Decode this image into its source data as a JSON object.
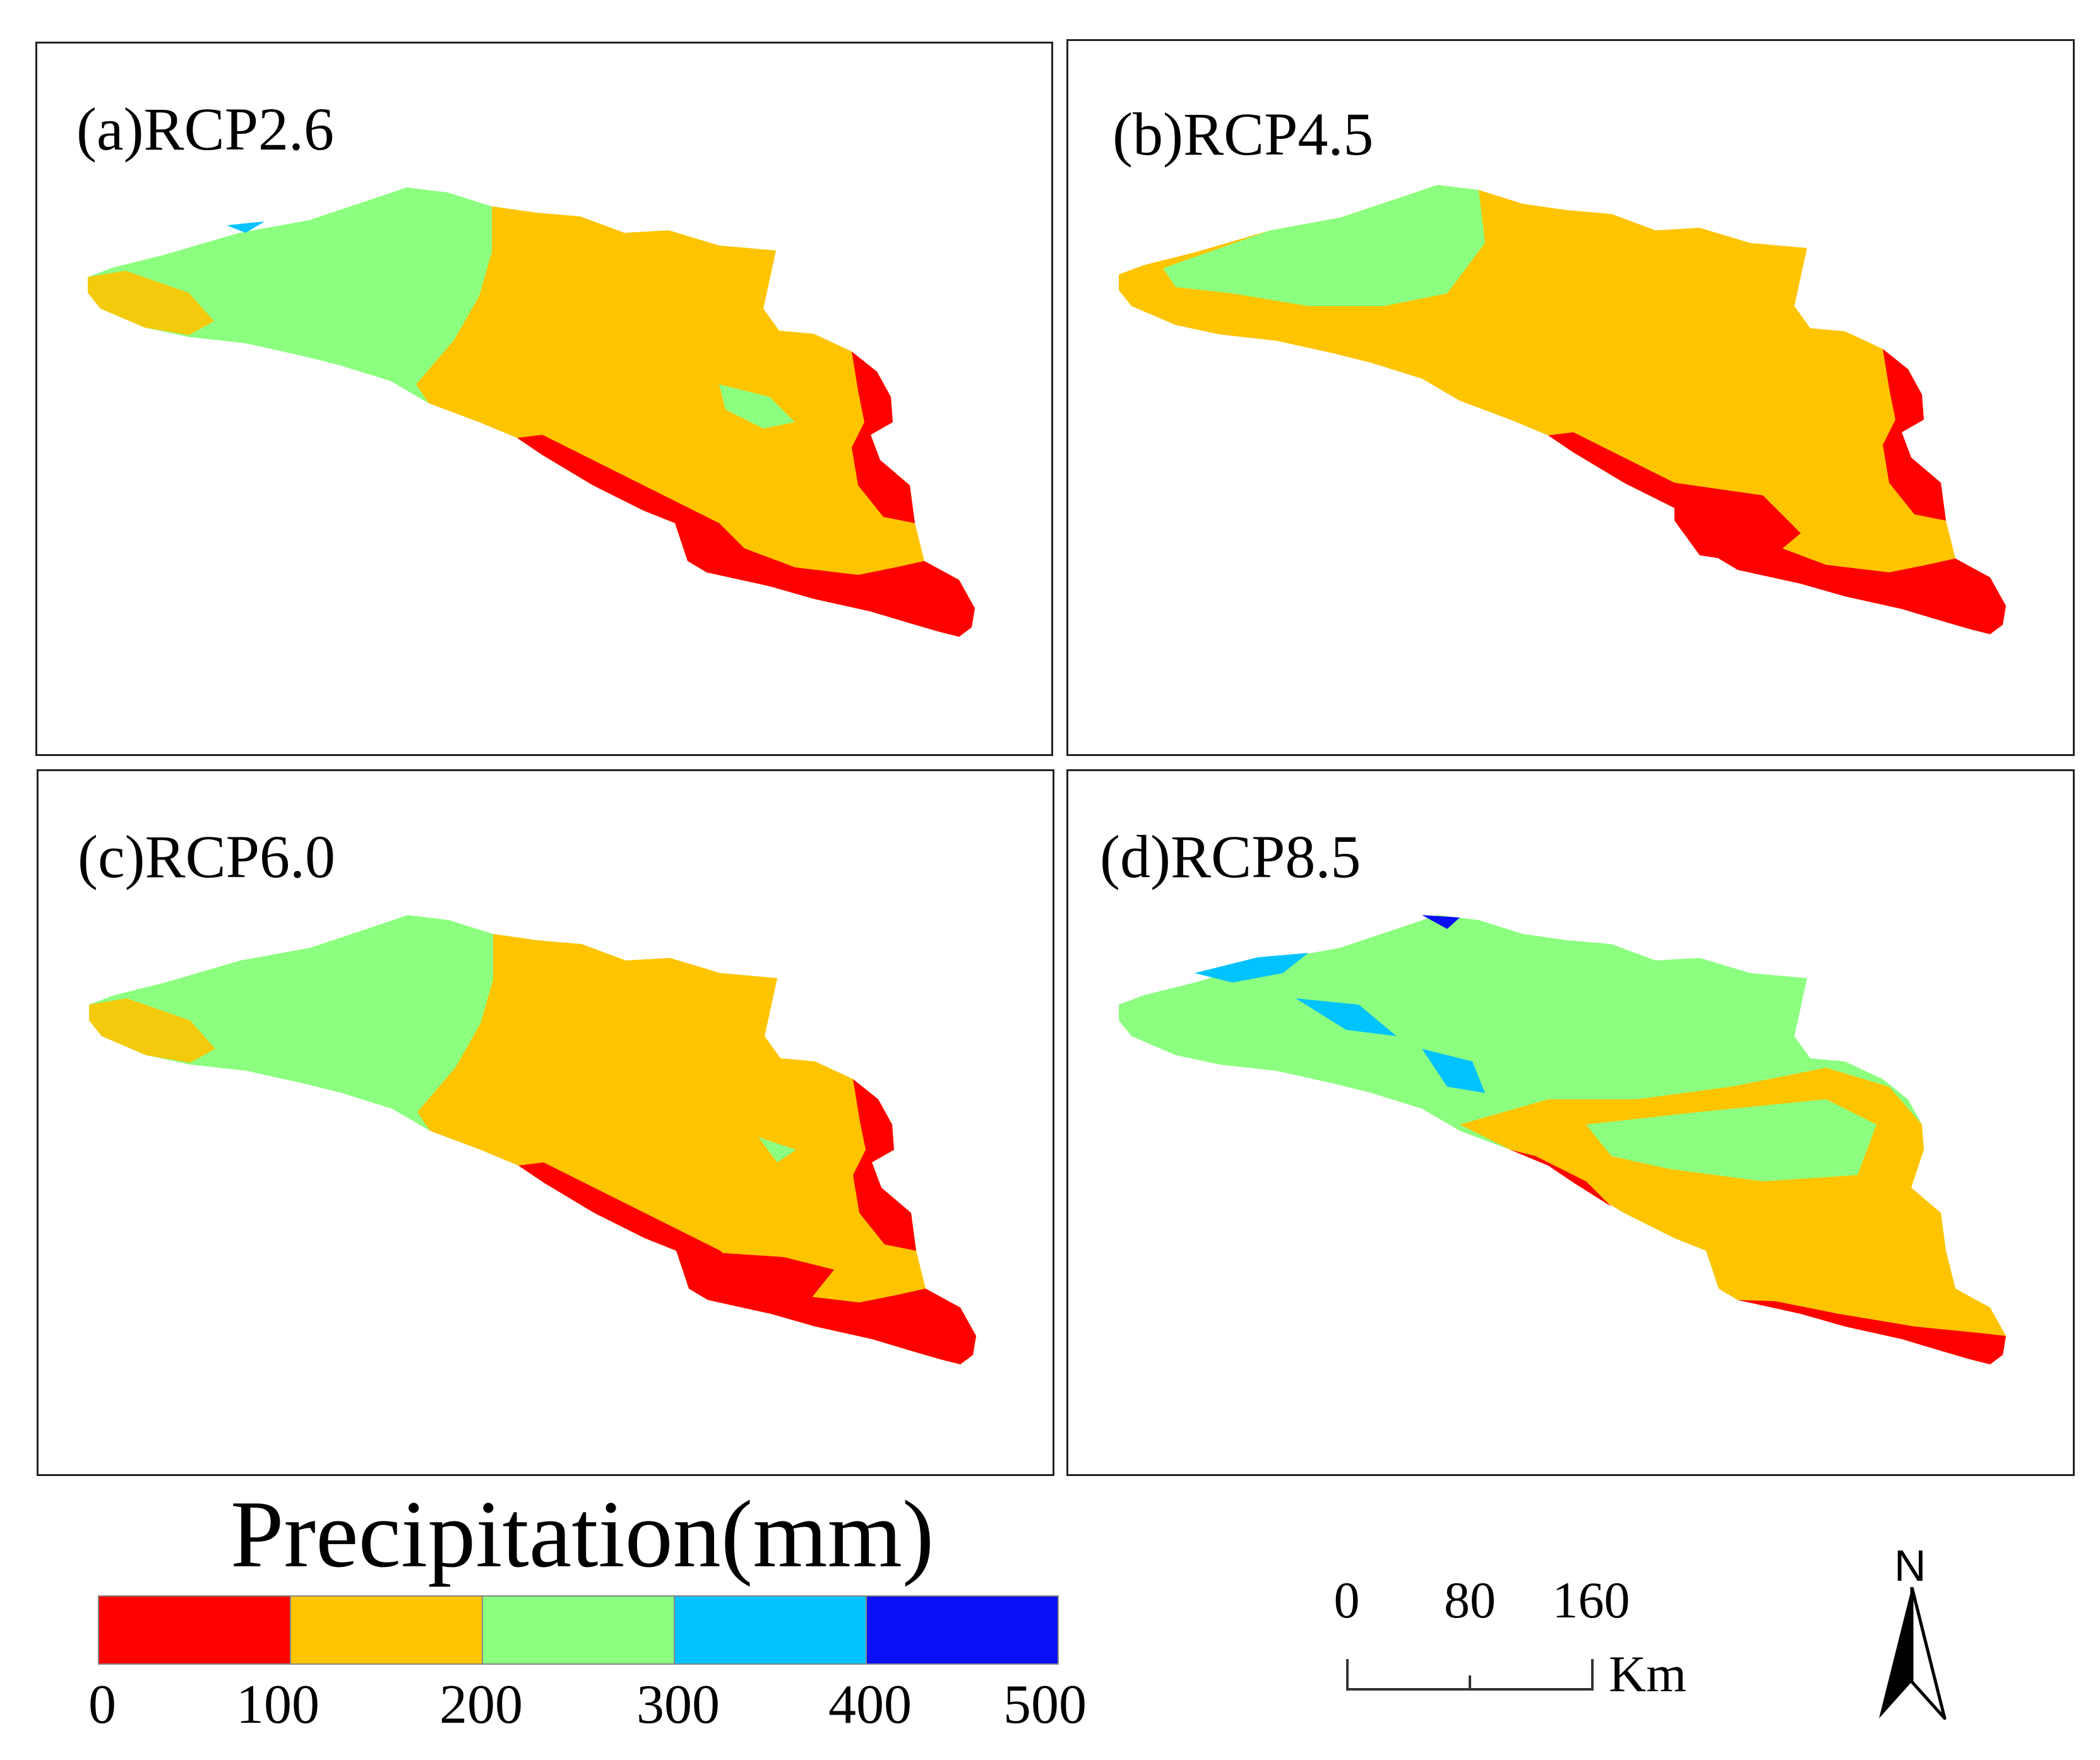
{
  "panels": [
    {
      "id": "a",
      "label": "(a)RCP2.6",
      "scenario": "RCP2.6",
      "dominant_classes": [
        "200-300",
        "100-200",
        "0-100"
      ]
    },
    {
      "id": "b",
      "label": "(b)RCP4.5",
      "scenario": "RCP4.5",
      "dominant_classes": [
        "100-200",
        "200-300",
        "0-100"
      ]
    },
    {
      "id": "c",
      "label": "(c)RCP6.0",
      "scenario": "RCP6.0",
      "dominant_classes": [
        "200-300",
        "100-200",
        "0-100"
      ]
    },
    {
      "id": "d",
      "label": "(d)RCP8.5",
      "scenario": "RCP8.5",
      "dominant_classes": [
        "200-300",
        "100-200",
        "300-400"
      ]
    }
  ],
  "legend": {
    "title": "Precipitation(mm)",
    "classes": [
      {
        "range": "0-100",
        "color": "#ff0000"
      },
      {
        "range": "100-200",
        "color": "#ffc400"
      },
      {
        "range": "200-300",
        "color": "#8cff80"
      },
      {
        "range": "300-400",
        "color": "#00c3ff"
      },
      {
        "range": "400-500",
        "color": "#0a10f5"
      }
    ],
    "ticks": [
      "0",
      "100",
      "200",
      "300",
      "400",
      "500"
    ]
  },
  "scale_bar": {
    "labels": [
      "0",
      "80",
      "160"
    ],
    "unit": "Km"
  },
  "north_arrow": {
    "label": "N"
  }
}
